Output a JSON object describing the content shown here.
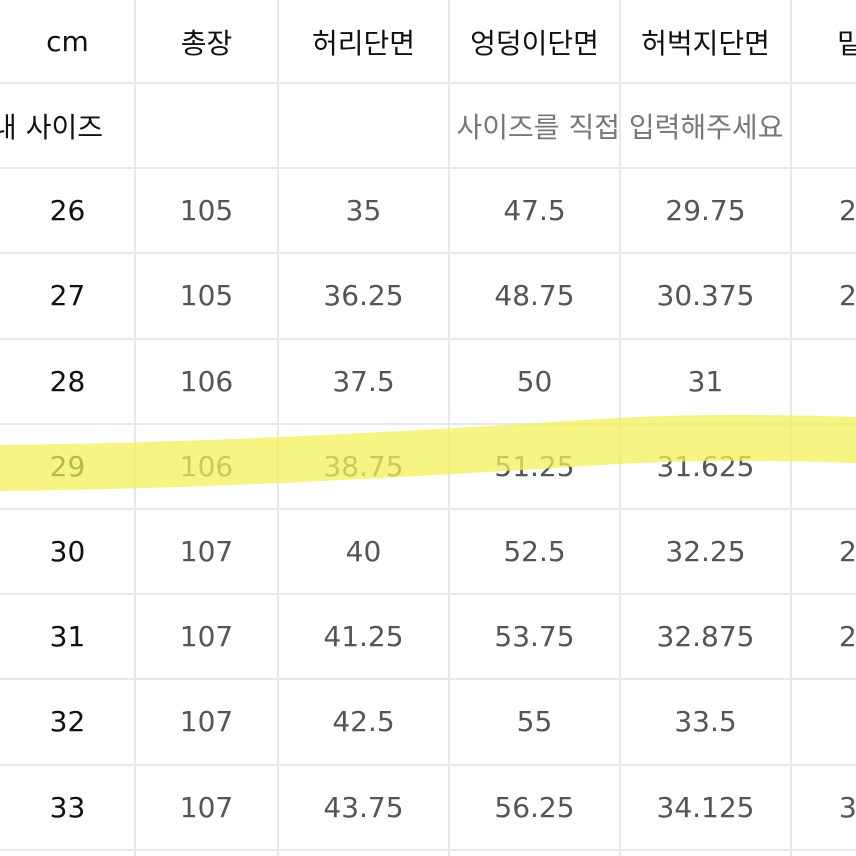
{
  "header": [
    "cm",
    "총장",
    "허리단면",
    "엉덩이단면",
    "허벅지단면",
    "밑"
  ],
  "my_size_row": {
    "label": "내 사이즈",
    "placeholder": "사이즈를 직접 입력해주세요"
  },
  "rows": [
    [
      "26",
      "105",
      "35",
      "47.5",
      "29.75",
      "2"
    ],
    [
      "27",
      "105",
      "36.25",
      "48.75",
      "30.375",
      "2"
    ],
    [
      "28",
      "106",
      "37.5",
      "50",
      "31",
      ""
    ],
    [
      "29",
      "106",
      "38.75",
      "51.25",
      "31.625",
      ""
    ],
    [
      "30",
      "107",
      "40",
      "52.5",
      "32.25",
      "2"
    ],
    [
      "31",
      "107",
      "41.25",
      "53.75",
      "32.875",
      "2"
    ],
    [
      "32",
      "107",
      "42.5",
      "55",
      "33.5",
      ""
    ],
    [
      "33",
      "107",
      "43.75",
      "56.25",
      "34.125",
      "3"
    ]
  ],
  "highlighted_row": "29",
  "colors": {
    "highlight": "#f3f25a",
    "grid": "#e8e8e8",
    "text": "#555555",
    "header_text": "#111111"
  }
}
